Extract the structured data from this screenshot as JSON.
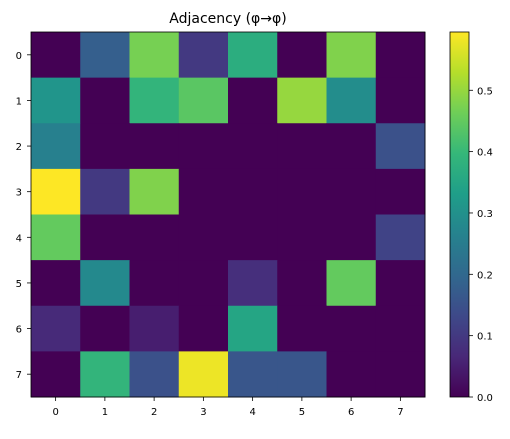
{
  "chart_data": {
    "type": "heatmap",
    "title": "Adjacency (φ→φ)",
    "xlabel": "",
    "ylabel": "",
    "x_ticks": [
      "0",
      "1",
      "2",
      "3",
      "4",
      "5",
      "6",
      "7"
    ],
    "y_ticks": [
      "0",
      "1",
      "2",
      "3",
      "4",
      "5",
      "6",
      "7"
    ],
    "colormap": "viridis",
    "vmin": 0.0,
    "vmax": 0.595,
    "colorbar_ticks": [
      0.0,
      0.1,
      0.2,
      0.3,
      0.4,
      0.5
    ],
    "colorbar_tick_labels": [
      "0.0",
      "0.1",
      "0.2",
      "0.3",
      "0.4",
      "0.5"
    ],
    "values": [
      [
        0.0,
        0.18,
        0.47,
        0.1,
        0.37,
        0.0,
        0.48,
        0.0
      ],
      [
        0.31,
        0.0,
        0.39,
        0.44,
        0.0,
        0.5,
        0.29,
        0.0
      ],
      [
        0.26,
        0.0,
        0.0,
        0.0,
        0.0,
        0.0,
        0.0,
        0.15
      ],
      [
        0.595,
        0.1,
        0.48,
        0.0,
        0.0,
        0.0,
        0.0,
        0.0
      ],
      [
        0.45,
        0.0,
        0.0,
        0.0,
        0.0,
        0.0,
        0.0,
        0.12
      ],
      [
        0.0,
        0.28,
        0.0,
        0.0,
        0.08,
        0.0,
        0.45,
        0.0
      ],
      [
        0.07,
        0.0,
        0.05,
        0.0,
        0.35,
        0.0,
        0.0,
        0.0
      ],
      [
        0.0,
        0.39,
        0.15,
        0.58,
        0.16,
        0.16,
        0.0,
        0.0
      ]
    ]
  }
}
